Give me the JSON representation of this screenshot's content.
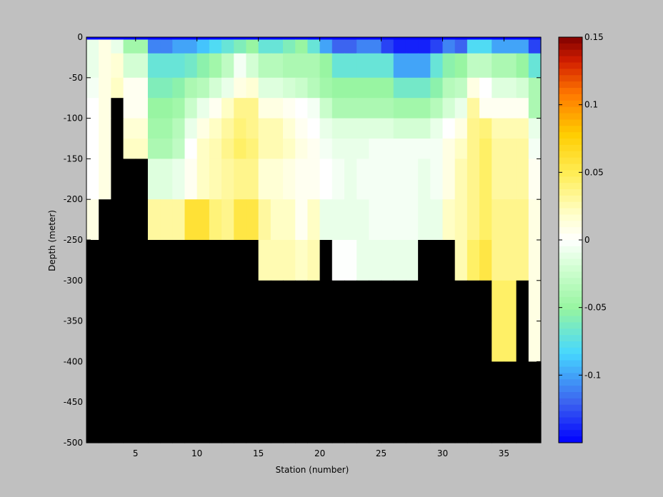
{
  "chart_data": {
    "type": "heatmap",
    "title": "",
    "xlabel": "Station (number)",
    "ylabel": "Depth (meter)",
    "xlim": [
      1,
      38
    ],
    "ylim": [
      -500,
      0
    ],
    "x_ticks": [
      5,
      10,
      15,
      20,
      25,
      30,
      35
    ],
    "y_ticks": [
      0,
      -50,
      -100,
      -150,
      -200,
      -250,
      -300,
      -350,
      -400,
      -450,
      -500
    ],
    "colorbar": {
      "colormap": "jet-white-center",
      "clim": [
        -0.15,
        0.15
      ],
      "ticks": [
        0.15,
        0.1,
        0.05,
        0,
        -0.05,
        -0.1
      ],
      "tick_labels": [
        "0.15",
        "0.1",
        "0.05",
        "0",
        "-0.05",
        "-0.1"
      ]
    },
    "masked_color": "#000000",
    "x_centers": [
      1.5,
      2.5,
      3.5,
      4.5,
      5.5,
      6.5,
      7.5,
      8.5,
      9.5,
      10.5,
      11.5,
      12.5,
      13.5,
      14.5,
      15.5,
      16.5,
      17.5,
      18.5,
      19.5,
      20.5,
      21.5,
      22.5,
      23.5,
      24.5,
      25.5,
      26.5,
      27.5,
      28.5,
      29.5,
      30.5,
      31.5,
      32.5,
      33.5,
      34.5,
      35.5,
      36.5,
      37.5
    ],
    "depth_bins": [
      [
        0,
        -3
      ],
      [
        -3,
        -20
      ],
      [
        -20,
        -50
      ],
      [
        -50,
        -75
      ],
      [
        -75,
        -100
      ],
      [
        -100,
        -125
      ],
      [
        -125,
        -150
      ],
      [
        -150,
        -200
      ],
      [
        -200,
        -250
      ],
      [
        -250,
        -300
      ],
      [
        -300,
        -350
      ],
      [
        -350,
        -400
      ],
      [
        -400,
        -450
      ],
      [
        -450,
        -500
      ]
    ],
    "values": [
      [
        -0.15,
        -0.15,
        -0.15,
        -0.15,
        -0.15,
        -0.15,
        -0.15,
        -0.15,
        -0.15,
        -0.15,
        -0.15,
        -0.15,
        -0.15,
        -0.15,
        -0.15,
        -0.15,
        -0.15,
        -0.15,
        -0.15,
        -0.15,
        -0.15,
        -0.15,
        -0.15,
        -0.15,
        -0.15,
        -0.15,
        -0.15,
        -0.15,
        -0.15,
        -0.15,
        -0.15,
        -0.15,
        -0.15,
        -0.15,
        -0.15,
        -0.15,
        -0.15
      ],
      [
        -0.01,
        0.01,
        -0.01,
        -0.045,
        -0.045,
        -0.11,
        -0.11,
        -0.1,
        -0.1,
        -0.09,
        -0.08,
        -0.07,
        -0.06,
        -0.05,
        -0.07,
        -0.07,
        -0.06,
        -0.05,
        -0.07,
        -0.1,
        -0.12,
        -0.12,
        -0.11,
        -0.11,
        -0.13,
        -0.14,
        -0.14,
        -0.14,
        -0.13,
        -0.11,
        -0.12,
        -0.08,
        -0.08,
        -0.1,
        -0.1,
        -0.1,
        -0.13
      ],
      [
        -0.01,
        0.01,
        0.015,
        -0.02,
        -0.02,
        -0.07,
        -0.07,
        -0.07,
        -0.065,
        -0.055,
        -0.045,
        -0.03,
        -0.005,
        -0.02,
        -0.035,
        -0.035,
        -0.04,
        -0.04,
        -0.04,
        -0.05,
        -0.07,
        -0.07,
        -0.07,
        -0.07,
        -0.07,
        -0.1,
        -0.1,
        -0.1,
        -0.07,
        -0.055,
        -0.05,
        -0.03,
        -0.03,
        -0.04,
        -0.04,
        -0.05,
        -0.07
      ],
      [
        -0.005,
        0.01,
        0.02,
        0.005,
        0.005,
        -0.06,
        -0.06,
        -0.055,
        -0.04,
        -0.035,
        -0.02,
        -0.01,
        0.01,
        0.015,
        -0.015,
        -0.015,
        -0.02,
        -0.025,
        -0.035,
        -0.045,
        -0.05,
        -0.05,
        -0.05,
        -0.05,
        -0.05,
        -0.065,
        -0.065,
        -0.065,
        -0.055,
        -0.035,
        -0.03,
        0.01,
        0.0,
        -0.015,
        -0.015,
        -0.02,
        -0.04
      ],
      [
        0.0,
        0.01,
        null,
        0.005,
        0.005,
        -0.05,
        -0.05,
        -0.045,
        -0.025,
        -0.01,
        0.005,
        0.02,
        0.035,
        0.035,
        0.01,
        0.01,
        0.005,
        0.0,
        -0.005,
        -0.025,
        -0.04,
        -0.04,
        -0.04,
        -0.04,
        -0.04,
        -0.045,
        -0.045,
        -0.045,
        -0.035,
        -0.02,
        -0.01,
        0.03,
        0.005,
        0.005,
        0.005,
        0.005,
        -0.04
      ],
      [
        0.0,
        0.01,
        null,
        0.015,
        0.015,
        -0.045,
        -0.045,
        -0.035,
        -0.01,
        0.01,
        0.02,
        0.03,
        0.04,
        0.035,
        0.025,
        0.025,
        0.015,
        0.005,
        0.0,
        -0.01,
        -0.015,
        -0.015,
        -0.015,
        -0.015,
        -0.015,
        -0.02,
        -0.02,
        -0.02,
        -0.01,
        0.0,
        0.01,
        0.035,
        0.04,
        0.025,
        0.025,
        0.025,
        -0.01
      ],
      [
        0.0,
        0.01,
        null,
        0.02,
        0.02,
        -0.04,
        -0.04,
        -0.03,
        0.0,
        0.02,
        0.025,
        0.035,
        0.045,
        0.04,
        0.025,
        0.025,
        0.02,
        0.01,
        0.005,
        -0.005,
        -0.01,
        -0.01,
        -0.01,
        -0.005,
        -0.005,
        -0.005,
        -0.005,
        -0.005,
        -0.005,
        0.01,
        0.02,
        0.035,
        0.045,
        0.03,
        0.03,
        0.03,
        -0.005
      ],
      [
        0.0,
        0.01,
        null,
        null,
        null,
        -0.015,
        -0.015,
        -0.01,
        0.005,
        0.02,
        0.025,
        0.03,
        0.035,
        0.035,
        0.015,
        0.015,
        0.01,
        0.005,
        0.005,
        0.0,
        -0.005,
        -0.01,
        -0.005,
        -0.005,
        -0.005,
        -0.005,
        -0.005,
        -0.01,
        -0.005,
        0.01,
        0.025,
        0.035,
        0.045,
        0.03,
        0.03,
        0.03,
        0.005
      ],
      [
        0.01,
        null,
        null,
        null,
        null,
        0.03,
        0.03,
        0.03,
        0.06,
        0.06,
        0.04,
        0.035,
        0.055,
        0.055,
        0.03,
        0.02,
        0.02,
        0.005,
        0.02,
        -0.01,
        -0.01,
        -0.01,
        -0.01,
        -0.005,
        -0.005,
        -0.005,
        -0.005,
        -0.01,
        -0.01,
        0.02,
        0.025,
        0.035,
        0.045,
        0.035,
        0.035,
        0.035,
        0.01
      ],
      [
        null,
        null,
        null,
        null,
        null,
        null,
        null,
        null,
        null,
        null,
        null,
        null,
        null,
        null,
        0.025,
        0.025,
        0.025,
        0.02,
        0.025,
        null,
        -0.001,
        -0.001,
        -0.01,
        -0.01,
        -0.01,
        -0.01,
        -0.01,
        null,
        null,
        null,
        0.025,
        0.045,
        0.055,
        0.035,
        0.035,
        0.035,
        0.01
      ],
      [
        null,
        null,
        null,
        null,
        null,
        null,
        null,
        null,
        null,
        null,
        null,
        null,
        null,
        null,
        null,
        null,
        null,
        null,
        null,
        null,
        null,
        null,
        null,
        null,
        null,
        null,
        null,
        null,
        null,
        null,
        null,
        null,
        null,
        0.045,
        0.045,
        null,
        0.01
      ],
      [
        null,
        null,
        null,
        null,
        null,
        null,
        null,
        null,
        null,
        null,
        null,
        null,
        null,
        null,
        null,
        null,
        null,
        null,
        null,
        null,
        null,
        null,
        null,
        null,
        null,
        null,
        null,
        null,
        null,
        null,
        null,
        null,
        null,
        0.045,
        0.045,
        null,
        0.01
      ],
      [
        null,
        null,
        null,
        null,
        null,
        null,
        null,
        null,
        null,
        null,
        null,
        null,
        null,
        null,
        null,
        null,
        null,
        null,
        null,
        null,
        null,
        null,
        null,
        null,
        null,
        null,
        null,
        null,
        null,
        null,
        null,
        null,
        null,
        null,
        null,
        null,
        null
      ],
      [
        null,
        null,
        null,
        null,
        null,
        null,
        null,
        null,
        null,
        null,
        null,
        null,
        null,
        null,
        null,
        null,
        null,
        null,
        null,
        null,
        null,
        null,
        null,
        null,
        null,
        null,
        null,
        null,
        null,
        null,
        null,
        null,
        null,
        null,
        null,
        null,
        null
      ]
    ]
  }
}
